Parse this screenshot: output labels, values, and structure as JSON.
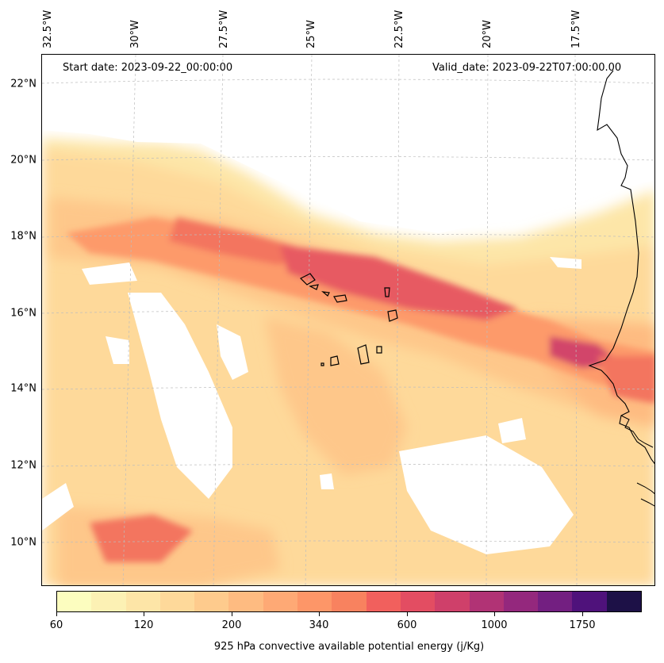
{
  "map": {
    "start_date": "Start date: 2023-09-22_00:00:00",
    "valid_date": "Valid_date: 2023-09-22T07:00:00.00",
    "latitude_labels": [
      "22°N",
      "20°N",
      "18°N",
      "16°N",
      "14°N",
      "12°N",
      "10°N"
    ],
    "longitude_labels": [
      "32.5°W",
      "30°W",
      "27.5°W",
      "25°W",
      "22.5°W",
      "20°W",
      "17.5°W"
    ],
    "variable": "925 hPa convective available potential energy",
    "colormap": "magma_r",
    "features": [
      "coastline-west-africa",
      "cape-verde-islands",
      "lat-lon-gridlines"
    ]
  },
  "colorbar": {
    "label": "925 hPa convective available potential energy (j/Kg)",
    "tick_labels": [
      "60",
      "120",
      "200",
      "340",
      "600",
      "1000",
      "1750"
    ],
    "colors": [
      "#fcfdbf",
      "#fcf1b4",
      "#fde5a7",
      "#fed99a",
      "#fecb8d",
      "#febb81",
      "#fea975",
      "#fd9668",
      "#f8825f",
      "#f1605d",
      "#e34d62",
      "#cf406a",
      "#b13375",
      "#94287d",
      "#731f81",
      "#4f127b",
      "#1d1147"
    ]
  }
}
